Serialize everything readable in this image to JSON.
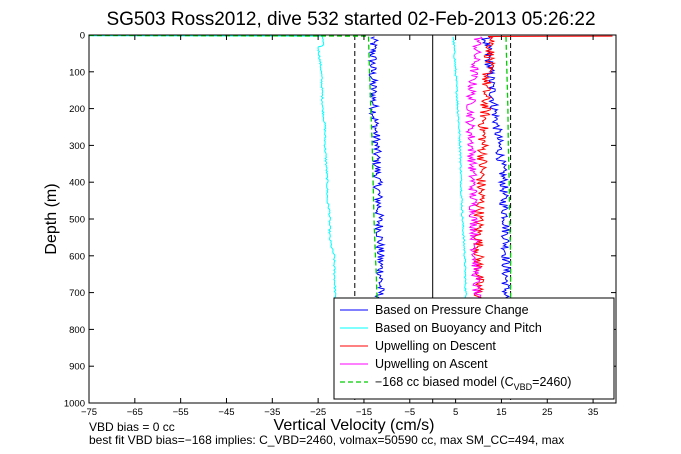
{
  "chart_data": {
    "type": "line",
    "title": "SG503 Ross2012, dive 532 started 02-Feb-2013 05:26:22",
    "xlabel": "Vertical Velocity (cm/s)",
    "ylabel": "Depth (m)",
    "xlim": [
      -75,
      40
    ],
    "ylim": [
      0,
      1000
    ],
    "y_reversed": true,
    "grid": false,
    "legend_position": "bottom-right",
    "x_ticks": [
      -75,
      -65,
      -55,
      -45,
      -35,
      -25,
      -15,
      -5,
      5,
      15,
      25,
      35
    ],
    "y_ticks": [
      0,
      100,
      200,
      300,
      400,
      500,
      600,
      700,
      800,
      900,
      1000
    ],
    "colors": {
      "pressure": "#0000ff",
      "buoyancy": "#00ffff",
      "descent": "#ff0000",
      "ascent": "#ff00ff",
      "model": "#00cc00",
      "reference": "#000000"
    },
    "legend": [
      {
        "label": "Based on Pressure Change",
        "color": "#0000ff",
        "style": "solid"
      },
      {
        "label": "Based on Buoyancy and Pitch",
        "color": "#00ffff",
        "style": "solid"
      },
      {
        "label": "Upwelling on Descent",
        "color": "#ff0000",
        "style": "solid"
      },
      {
        "label": "Upwelling on Ascent",
        "color": "#ff00ff",
        "style": "solid"
      },
      {
        "label_main": "−168 cc biased model (C",
        "label_sub": "VBD",
        "label_tail": "=2460)",
        "color": "#00cc00",
        "style": "dashed"
      }
    ],
    "reference_lines": [
      {
        "x": -17,
        "style": "dashed"
      },
      {
        "x": 0,
        "style": "solid"
      },
      {
        "x": 17,
        "style": "dashed"
      }
    ],
    "series": [
      {
        "key": "pressure_descent",
        "color": "#0000ff",
        "noise": 1.0,
        "x": [
          -13,
          -13,
          -13.2,
          -13,
          -12.8,
          -12.5,
          -12.3,
          -12.2,
          -12,
          -11.8,
          -11.7,
          -11.5,
          -11.5,
          -11.3,
          -11.6
        ],
        "y": [
          5,
          50,
          100,
          150,
          200,
          250,
          300,
          350,
          400,
          450,
          500,
          550,
          600,
          650,
          720
        ]
      },
      {
        "key": "pressure_ascent",
        "color": "#0000ff",
        "noise": 1.0,
        "x": [
          11.5,
          12,
          12.5,
          13,
          13.5,
          14,
          14.5,
          15,
          15.5,
          15.5,
          16,
          16,
          16,
          16
        ],
        "y": [
          5,
          50,
          100,
          150,
          200,
          250,
          300,
          350,
          400,
          450,
          500,
          550,
          600,
          720
        ]
      },
      {
        "key": "buoyancy_descent",
        "color": "#00ffff",
        "noise": 0.2,
        "x": [
          -75,
          -24,
          -24,
          -25,
          -24.3,
          -24,
          -23.5,
          -23.5,
          -23,
          -23,
          -22.5,
          -22.5,
          -22,
          -21.5,
          -21.5,
          -21.3,
          -21.3
        ],
        "y": [
          2,
          3,
          30,
          32,
          100,
          200,
          250,
          300,
          400,
          450,
          480,
          550,
          580,
          600,
          620,
          700,
          720
        ]
      },
      {
        "key": "buoyancy_ascent",
        "color": "#00ffff",
        "noise": 0.2,
        "x": [
          4.5,
          5,
          5.5,
          6,
          6.2,
          6.5,
          7,
          7.2,
          7.3
        ],
        "y": [
          5,
          100,
          200,
          300,
          400,
          500,
          600,
          700,
          720
        ]
      },
      {
        "key": "upwelling_descent",
        "color": "#ff0000",
        "noise": 1.2,
        "x": [
          40,
          13,
          12.5,
          12,
          11.5,
          11.5,
          11,
          11,
          10.8,
          10.5,
          10.5,
          10,
          10,
          10
        ],
        "y": [
          3,
          4,
          50,
          100,
          150,
          200,
          250,
          300,
          350,
          400,
          450,
          500,
          600,
          720
        ]
      },
      {
        "key": "upwelling_ascent",
        "color": "#ff00ff",
        "noise": 1.0,
        "x": [
          10,
          9.5,
          9,
          8.5,
          8.3,
          8.2,
          8.5,
          8.7,
          9,
          9.3,
          9.5,
          9.5,
          9.5
        ],
        "y": [
          5,
          50,
          100,
          150,
          200,
          250,
          300,
          400,
          500,
          600,
          650,
          700,
          720
        ]
      },
      {
        "key": "model_descent",
        "color": "#00cc00",
        "style": "dashed",
        "x": [
          -75,
          -14,
          -13.8,
          -13.5,
          -13.2,
          -13,
          -12.8,
          -12.5,
          -12.3,
          -12.2,
          -12
        ],
        "y": [
          1,
          3,
          100,
          200,
          300,
          400,
          500,
          600,
          650,
          700,
          720
        ]
      },
      {
        "key": "model_ascent",
        "color": "#00cc00",
        "style": "dashed",
        "x": [
          16,
          16.2,
          16.4,
          16.5,
          16.7,
          16.8,
          17,
          17,
          17
        ],
        "y": [
          5,
          100,
          200,
          300,
          400,
          500,
          600,
          700,
          720
        ]
      }
    ]
  },
  "footer": {
    "line1": "VBD bias = 0 cc",
    "line2": "best fit VBD bias=−168 implies: C_VBD=2460, volmax=50590 cc, max SM_CC=494, max"
  }
}
